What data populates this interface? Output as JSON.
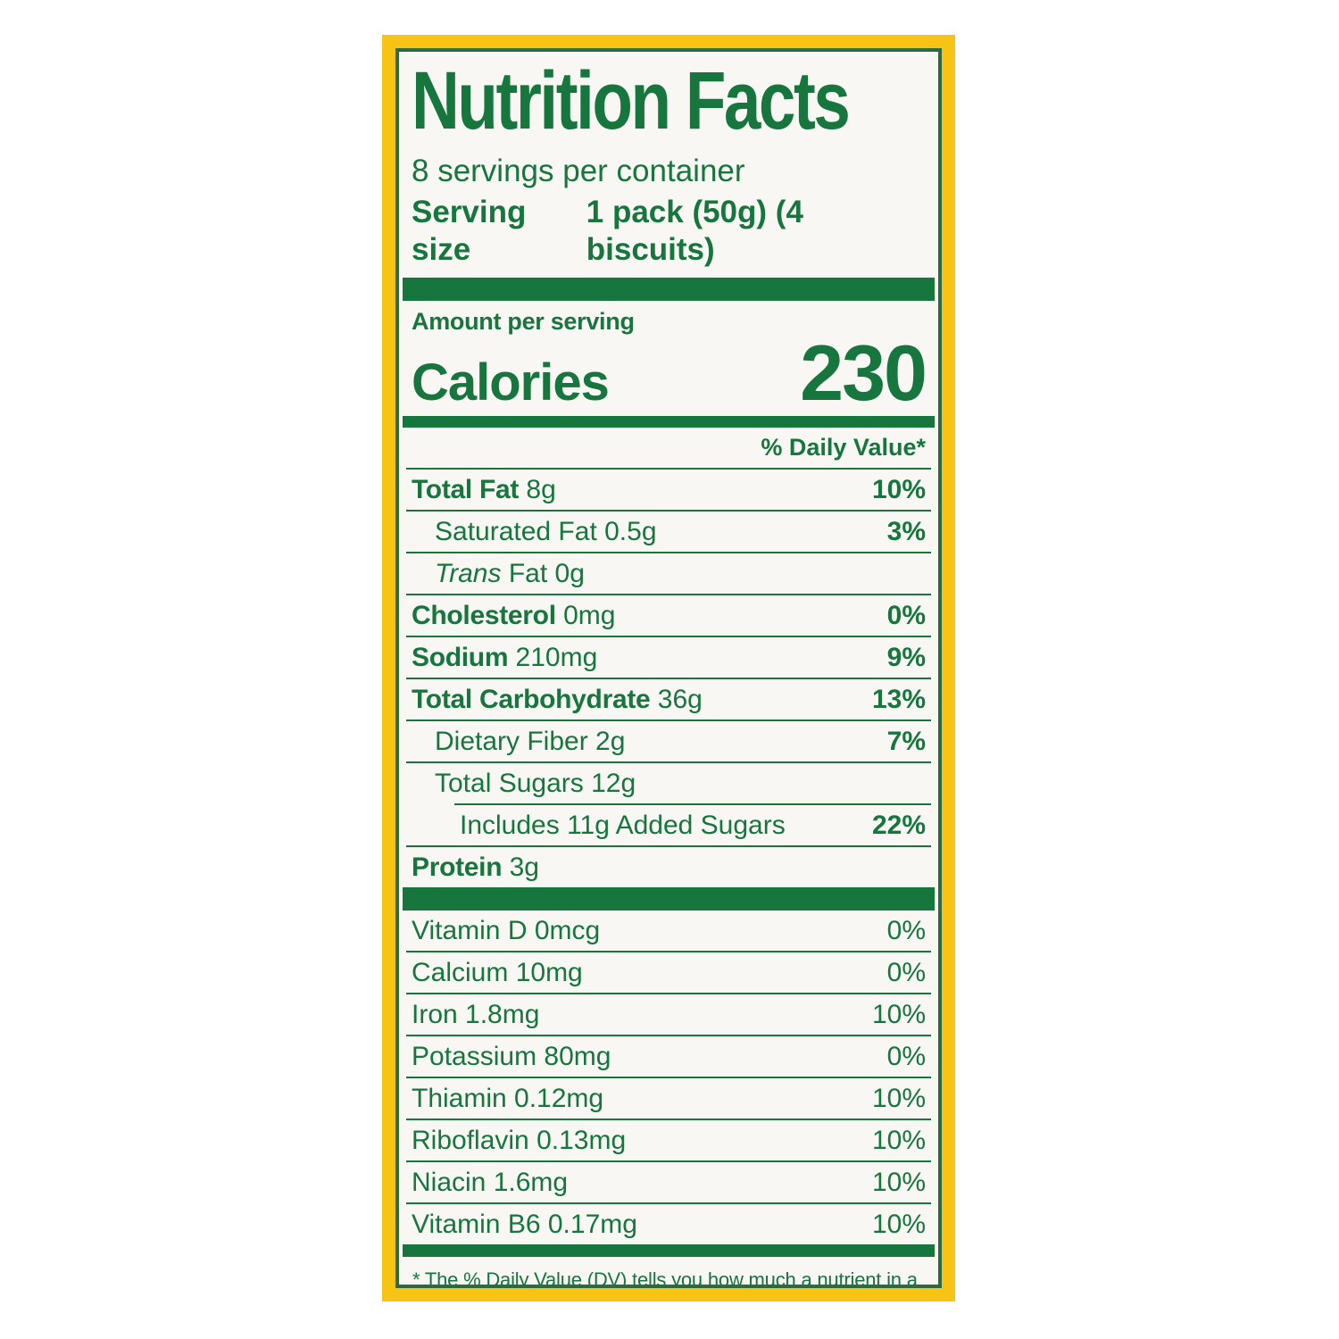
{
  "label": {
    "title": "Nutrition Facts",
    "servings_per_container": "8 servings per container",
    "serving_size_label": "Serving size",
    "serving_size_value": "1 pack (50g) (4 biscuits)",
    "amount_per_serving": "Amount per serving",
    "calories_label": "Calories",
    "calories_value": "230",
    "daily_value_header": "% Daily Value*",
    "nutrients": [
      {
        "name": "Total Fat",
        "amount": "8g",
        "dv": "10%",
        "bold": true,
        "indent": 0
      },
      {
        "name": "Saturated Fat",
        "amount": "0.5g",
        "dv": "3%",
        "bold": false,
        "indent": 1
      },
      {
        "italic": "Trans",
        "name": "Fat",
        "amount": "0g",
        "dv": "",
        "bold": false,
        "indent": 1
      },
      {
        "name": "Cholesterol",
        "amount": "0mg",
        "dv": "0%",
        "bold": true,
        "indent": 0
      },
      {
        "name": "Sodium",
        "amount": "210mg",
        "dv": "9%",
        "bold": true,
        "indent": 0
      },
      {
        "name": "Total Carbohydrate",
        "amount": "36g",
        "dv": "13%",
        "bold": true,
        "indent": 0
      },
      {
        "name": "Dietary Fiber",
        "amount": "2g",
        "dv": "7%",
        "bold": false,
        "indent": 1
      },
      {
        "name": "Total Sugars",
        "amount": "12g",
        "dv": "",
        "bold": false,
        "indent": 1
      },
      {
        "name": "Includes 11g Added Sugars",
        "amount": "",
        "dv": "22%",
        "bold": false,
        "indent": 2,
        "divider_indent": true
      },
      {
        "name": "Protein",
        "amount": "3g",
        "dv": "",
        "bold": true,
        "indent": 0
      }
    ],
    "micronutrients": [
      {
        "name": "Vitamin D",
        "amount": "0mcg",
        "dv": "0%"
      },
      {
        "name": "Calcium",
        "amount": "10mg",
        "dv": "0%"
      },
      {
        "name": "Iron",
        "amount": "1.8mg",
        "dv": "10%"
      },
      {
        "name": "Potassium",
        "amount": "80mg",
        "dv": "0%"
      },
      {
        "name": "Thiamin",
        "amount": "0.12mg",
        "dv": "10%"
      },
      {
        "name": "Riboflavin",
        "amount": "0.13mg",
        "dv": "10%"
      },
      {
        "name": "Niacin",
        "amount": "1.6mg",
        "dv": "10%"
      },
      {
        "name": "Vitamin B6",
        "amount": "0.17mg",
        "dv": "10%"
      }
    ],
    "footnote": "* The % Daily Value (DV) tells you how much a nutrient in a serving of food contributes to a daily diet. 2,000 calories a day is used for general nutrition advice.",
    "colors": {
      "green": "#17753E",
      "frame_green": "#2D6B3F",
      "yellow": "#F7C315",
      "paper": "#F8F7F3"
    }
  }
}
